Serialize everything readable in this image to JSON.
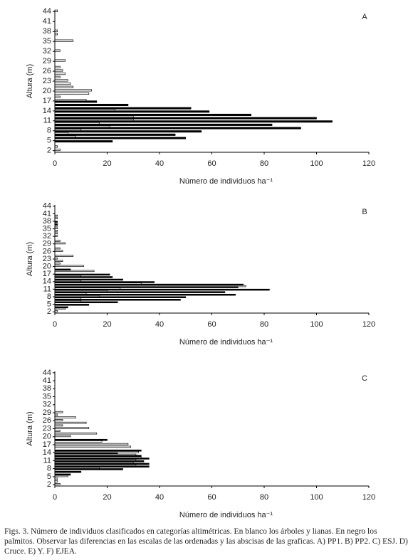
{
  "chart_data": [
    {
      "type": "bar",
      "orientation": "horizontal",
      "panel": "A",
      "y_label": "Altura (m)",
      "x_label": "Número de individuos ha⁻¹",
      "heights": [
        2,
        3,
        4,
        5,
        6,
        7,
        8,
        9,
        10,
        11,
        12,
        13,
        14,
        15,
        16,
        17,
        18,
        19,
        20,
        21,
        22,
        23,
        24,
        25,
        26,
        27,
        28,
        29,
        30,
        31,
        32,
        33,
        34,
        35,
        36,
        37,
        38,
        39,
        40,
        41,
        42,
        43,
        44
      ],
      "series": [
        {
          "color": "#ffffff",
          "values": [
            2,
            1,
            0,
            0,
            8,
            5,
            10,
            21,
            17,
            30,
            30,
            0,
            23,
            0,
            0,
            12,
            2,
            13,
            14,
            7,
            6,
            5,
            2,
            4,
            3,
            2,
            0,
            4,
            0,
            0,
            2,
            0,
            0,
            7,
            0,
            1,
            1,
            0,
            0,
            0,
            0,
            0,
            1
          ]
        },
        {
          "color": "#000000",
          "values": [
            0,
            0,
            0,
            22,
            50,
            46,
            56,
            94,
            83,
            106,
            100,
            75,
            59,
            52,
            28,
            16,
            0,
            0,
            0,
            0,
            0,
            0,
            0,
            0,
            0,
            0,
            0,
            0,
            0,
            0,
            0,
            0,
            0,
            0,
            0,
            0,
            0,
            0,
            0,
            0,
            0,
            0,
            0
          ]
        }
      ],
      "xlim": [
        0,
        120
      ],
      "xticks": [
        0,
        20,
        40,
        60,
        80,
        100,
        120
      ],
      "ylim": [
        1.5,
        44.5
      ],
      "yticks": [
        2,
        5,
        8,
        11,
        14,
        17,
        20,
        23,
        26,
        29,
        32,
        35,
        38,
        41,
        44
      ]
    },
    {
      "type": "bar",
      "orientation": "horizontal",
      "panel": "B",
      "y_label": "Altura (m)",
      "x_label": "Número de individuos ha⁻¹",
      "heights": [
        2,
        3,
        4,
        5,
        6,
        7,
        8,
        9,
        10,
        11,
        12,
        13,
        14,
        15,
        16,
        17,
        18,
        19,
        20,
        21,
        22,
        23,
        24,
        25,
        26,
        27,
        28,
        29,
        30,
        31,
        32,
        33,
        34,
        35,
        36,
        37,
        38,
        39,
        40,
        41,
        42,
        43,
        44
      ],
      "series": [
        {
          "color": "#ffffff",
          "values": [
            1,
            4,
            0,
            0,
            10,
            10,
            17,
            12,
            20,
            25,
            73,
            33,
            10,
            0,
            10,
            0,
            15,
            0,
            11,
            2,
            3,
            1,
            7,
            0,
            3,
            2,
            0,
            4,
            2,
            0,
            1,
            1,
            1,
            1,
            1,
            0,
            0,
            1,
            1,
            0,
            0,
            0,
            0
          ]
        },
        {
          "color": "#000000",
          "values": [
            0,
            0,
            5,
            13,
            24,
            48,
            50,
            69,
            65,
            82,
            70,
            72,
            38,
            26,
            22,
            21,
            0,
            6,
            0,
            0,
            0,
            0,
            0,
            0,
            0,
            0,
            0,
            0,
            0,
            0,
            0,
            0,
            0,
            0,
            0,
            1,
            1,
            0,
            0,
            0,
            0,
            0,
            0
          ]
        }
      ],
      "xlim": [
        0,
        120
      ],
      "xticks": [
        0,
        20,
        40,
        60,
        80,
        100,
        120
      ],
      "ylim": [
        1.5,
        44.5
      ],
      "yticks": [
        2,
        5,
        8,
        11,
        14,
        17,
        20,
        23,
        26,
        29,
        32,
        35,
        38,
        41,
        44
      ]
    },
    {
      "type": "bar",
      "orientation": "horizontal",
      "panel": "C",
      "y_label": "Altura (m)",
      "x_label": "Número de individuos ha⁻¹",
      "heights": [
        2,
        3,
        4,
        5,
        6,
        7,
        8,
        9,
        10,
        11,
        12,
        13,
        14,
        15,
        16,
        17,
        18,
        19,
        20,
        21,
        22,
        23,
        24,
        25,
        26,
        27,
        28,
        29,
        30,
        31,
        32,
        33,
        34,
        35,
        36,
        37,
        38,
        39,
        40,
        41,
        42,
        43,
        44
      ],
      "series": [
        {
          "color": "#ffffff",
          "values": [
            2,
            1,
            1,
            5,
            0,
            0,
            17,
            31,
            30,
            31,
            33,
            31,
            32,
            0,
            29,
            28,
            18,
            0,
            6,
            16,
            2,
            13,
            3,
            12,
            3,
            8,
            1,
            3,
            0,
            0,
            0,
            0,
            0,
            0,
            0,
            0,
            0,
            0,
            0,
            0,
            0,
            0,
            0
          ]
        },
        {
          "color": "#000000",
          "values": [
            0,
            0,
            0,
            0,
            6,
            10,
            26,
            36,
            36,
            34,
            36,
            33,
            24,
            33,
            0,
            0,
            0,
            20,
            0,
            0,
            0,
            0,
            0,
            0,
            0,
            0,
            0,
            0,
            0,
            0,
            0,
            0,
            0,
            0,
            0,
            0,
            0,
            0,
            0,
            0,
            0,
            0,
            0
          ]
        }
      ],
      "xlim": [
        0,
        120
      ],
      "xticks": [
        0,
        20,
        40,
        60,
        80,
        100,
        120
      ],
      "ylim": [
        1.5,
        44.5
      ],
      "yticks": [
        2,
        5,
        8,
        11,
        14,
        17,
        20,
        23,
        26,
        29,
        32,
        35,
        38,
        41,
        44
      ]
    }
  ],
  "caption": "Figs. 3. Número de individuos clasificados en categorías altimétricas. En blanco los árboles y lianas. En negro los palmitos. Observar las diferencias en las escalas de las ordenadas y las abscisas de las graficas. A) PP1. B) PP2. C) ESJ. D) Cruce. E) Y. F) EJEA."
}
